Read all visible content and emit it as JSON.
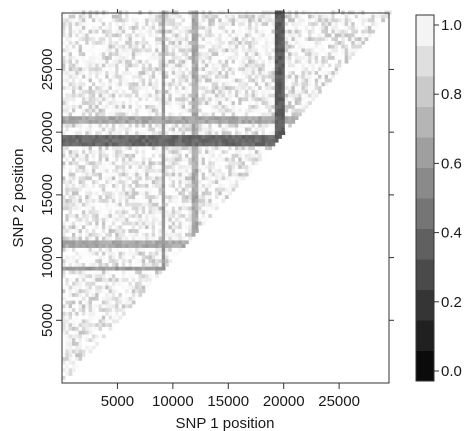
{
  "chart_data": {
    "type": "heatmap",
    "title": "",
    "xlabel": "SNP 1 position",
    "ylabel": "SNP 2 position",
    "xlim": [
      0,
      29500
    ],
    "ylim": [
      0,
      29500
    ],
    "x_ticks": [
      5000,
      10000,
      15000,
      20000,
      25000
    ],
    "y_ticks": [
      5000,
      10000,
      15000,
      20000,
      25000
    ],
    "x_tick_labels": [
      "5000",
      "10000",
      "15000",
      "20000",
      "25000"
    ],
    "y_tick_labels": [
      "5000",
      "10000",
      "15000",
      "20000",
      "25000"
    ],
    "shape": "upper-left triangle (SNP 2 position > SNP 1 position)",
    "colorbar": {
      "range": [
        0.0,
        1.0
      ],
      "colormap": "grayscale (0.0 = black, 1.0 = white)",
      "ticks": [
        0.0,
        0.2,
        0.4,
        0.6,
        0.8,
        1.0
      ],
      "tick_labels": [
        "0.0",
        "0.2",
        "0.4",
        "0.6",
        "0.8",
        "1.0"
      ],
      "levels": 12
    },
    "background_value_range": [
      0.75,
      1.0
    ],
    "low_value_bands": [
      {
        "axis": "SNP 2 position",
        "range": [
          18900,
          19800
        ],
        "value": 0.35
      },
      {
        "axis": "SNP 1 position",
        "range": [
          19200,
          19900
        ],
        "value": 0.3
      },
      {
        "axis": "SNP 2 position",
        "range": [
          20900,
          21300
        ],
        "value": 0.6
      },
      {
        "axis": "SNP 2 position",
        "range": [
          9000,
          9300
        ],
        "value": 0.55
      },
      {
        "axis": "SNP 2 position",
        "range": [
          11000,
          11300
        ],
        "value": 0.6
      },
      {
        "axis": "SNP 1 position",
        "range": [
          9000,
          9300
        ],
        "value": 0.55
      },
      {
        "axis": "SNP 1 position",
        "range": [
          11800,
          12100
        ],
        "value": 0.6
      }
    ]
  }
}
